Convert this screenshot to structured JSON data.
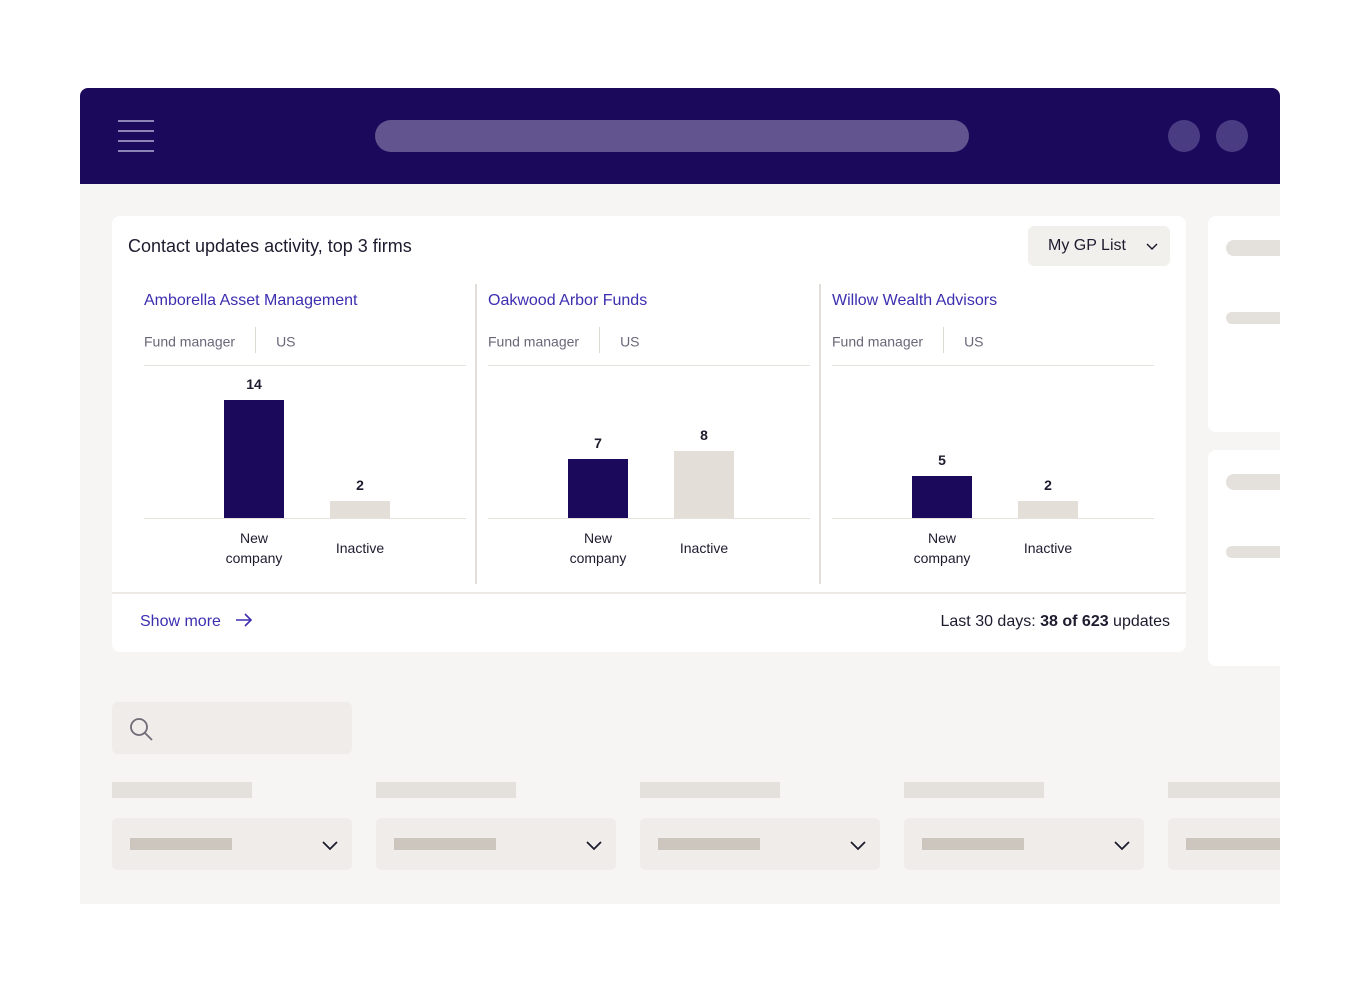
{
  "card": {
    "title": "Contact updates activity, top 3 firms",
    "list_selector": "My GP List",
    "firms": [
      {
        "name": "Amborella Asset Management",
        "type": "Fund manager",
        "region": "US",
        "bars": [
          {
            "label_line1": "New",
            "label_line2": "company",
            "value": 14
          },
          {
            "label_line1": "Inactive",
            "label_line2": "",
            "value": 2
          }
        ]
      },
      {
        "name": "Oakwood Arbor Funds",
        "type": "Fund manager",
        "region": "US",
        "bars": [
          {
            "label_line1": "New",
            "label_line2": "company",
            "value": 7
          },
          {
            "label_line1": "Inactive",
            "label_line2": "",
            "value": 8
          }
        ]
      },
      {
        "name": "Willow Wealth Advisors",
        "type": "Fund manager",
        "region": "US",
        "bars": [
          {
            "label_line1": "New",
            "label_line2": "company",
            "value": 5
          },
          {
            "label_line1": "Inactive",
            "label_line2": "",
            "value": 2
          }
        ]
      }
    ],
    "show_more": "Show more",
    "summary_prefix": "Last 30 days: ",
    "summary_count": "38 of 623",
    "summary_suffix": " updates"
  },
  "icons": {
    "menu": "hamburger-icon",
    "select": "chevron-down-icon",
    "show_more": "arrow-right-icon",
    "search": "search-icon"
  },
  "colors": {
    "header": "#1b0a5c",
    "accent_link": "#3b2fb0",
    "bar_new": "#1b0a5c",
    "bar_inactive": "#e3ded7",
    "background": "#f6f5f3"
  },
  "chart_data": [
    {
      "type": "bar",
      "title": "Amborella Asset Management",
      "categories": [
        "New company",
        "Inactive"
      ],
      "values": [
        14,
        2
      ]
    },
    {
      "type": "bar",
      "title": "Oakwood Arbor Funds",
      "categories": [
        "New company",
        "Inactive"
      ],
      "values": [
        7,
        8
      ]
    },
    {
      "type": "bar",
      "title": "Willow Wealth Advisors",
      "categories": [
        "New company",
        "Inactive"
      ],
      "values": [
        5,
        2
      ]
    }
  ]
}
